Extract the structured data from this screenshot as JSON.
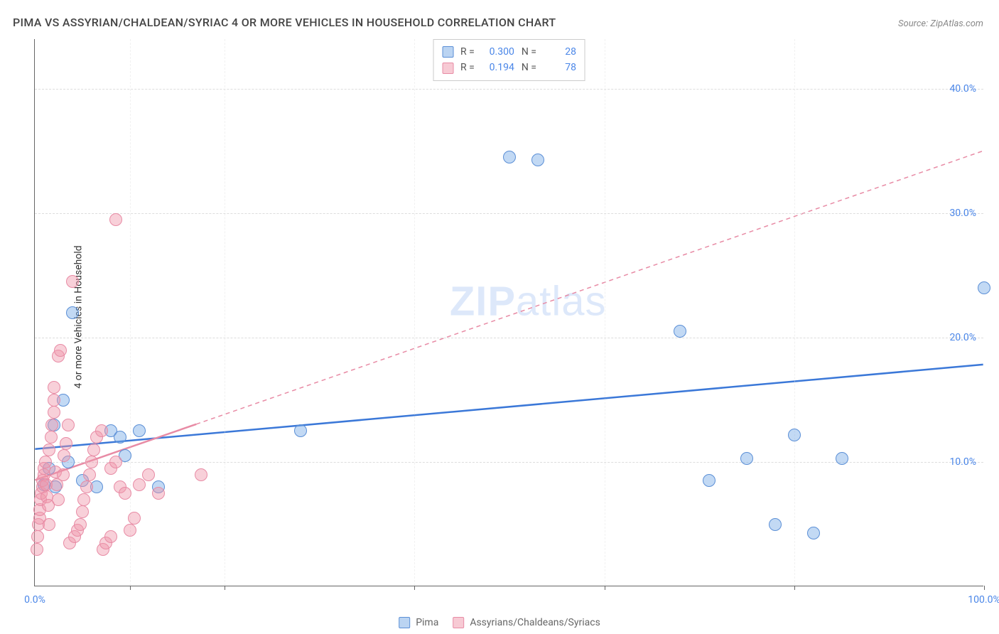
{
  "title": "PIMA VS ASSYRIAN/CHALDEAN/SYRIAC 4 OR MORE VEHICLES IN HOUSEHOLD CORRELATION CHART",
  "source": "Source: ZipAtlas.com",
  "y_axis_label": "4 or more Vehicles in Household",
  "watermark": {
    "bold": "ZIP",
    "rest": "atlas"
  },
  "chart": {
    "type": "scatter",
    "background_color": "#ffffff",
    "grid_color": "#dddddd",
    "axis_color": "#666666",
    "xlim": [
      0,
      100
    ],
    "ylim": [
      0,
      44
    ],
    "x_ticks": [
      0,
      10,
      20,
      40,
      60,
      80,
      100
    ],
    "x_tick_labels": {
      "0": "0.0%",
      "100": "100.0%"
    },
    "y_ticks": [
      10,
      20,
      30,
      40
    ],
    "y_tick_labels": {
      "10": "10.0%",
      "20": "20.0%",
      "30": "30.0%",
      "40": "40.0%"
    },
    "marker_radius": 9,
    "series": [
      {
        "name": "Pima",
        "color_fill": "rgba(120,170,230,0.45)",
        "color_stroke": "#5b8fd6",
        "r": "0.300",
        "n": "28",
        "trend": {
          "solid": true,
          "color": "#3b78d8",
          "width": 2.5,
          "x1": 0,
          "y1": 11.0,
          "x2": 100,
          "y2": 17.8
        },
        "points": [
          [
            1.0,
            8.2
          ],
          [
            1.5,
            9.5
          ],
          [
            2.0,
            13.0
          ],
          [
            2.2,
            8.0
          ],
          [
            3.0,
            15.0
          ],
          [
            3.5,
            10.0
          ],
          [
            4.0,
            22.0
          ],
          [
            5.0,
            8.5
          ],
          [
            6.5,
            8.0
          ],
          [
            8.0,
            12.5
          ],
          [
            9.0,
            12.0
          ],
          [
            9.5,
            10.5
          ],
          [
            11.0,
            12.5
          ],
          [
            13.0,
            8.0
          ],
          [
            28.0,
            12.5
          ],
          [
            50.0,
            34.5
          ],
          [
            53.0,
            34.3
          ],
          [
            68.0,
            20.5
          ],
          [
            71.0,
            8.5
          ],
          [
            75.0,
            10.3
          ],
          [
            78.0,
            5.0
          ],
          [
            80.0,
            12.2
          ],
          [
            82.0,
            4.3
          ],
          [
            85.0,
            10.3
          ],
          [
            100.0,
            24.0
          ]
        ]
      },
      {
        "name": "Assyrians/Chaldeans/Syriacs",
        "color_fill": "rgba(240,150,170,0.45)",
        "color_stroke": "#e88ba5",
        "r": "0.194",
        "n": "78",
        "trend": {
          "solid": false,
          "color": "#e88ba5",
          "width": 1.5,
          "x1": 0,
          "y1": 8.5,
          "x2": 100,
          "y2": 35.0,
          "solid_segment": {
            "x1": 0,
            "y1": 8.5,
            "x2": 17,
            "y2": 13.0
          }
        },
        "points": [
          [
            0.2,
            3.0
          ],
          [
            0.3,
            4.0
          ],
          [
            0.4,
            5.0
          ],
          [
            0.5,
            5.5
          ],
          [
            0.5,
            6.2
          ],
          [
            0.6,
            7.0
          ],
          [
            0.7,
            7.5
          ],
          [
            0.8,
            8.0
          ],
          [
            0.8,
            8.5
          ],
          [
            1.0,
            9.0
          ],
          [
            1.0,
            9.5
          ],
          [
            1.1,
            10.0
          ],
          [
            1.2,
            8.2
          ],
          [
            1.3,
            7.2
          ],
          [
            1.4,
            6.5
          ],
          [
            1.5,
            5.0
          ],
          [
            1.5,
            11.0
          ],
          [
            1.7,
            12.0
          ],
          [
            1.8,
            13.0
          ],
          [
            2.0,
            14.0
          ],
          [
            2.0,
            15.0
          ],
          [
            2.0,
            16.0
          ],
          [
            2.2,
            9.2
          ],
          [
            2.3,
            8.2
          ],
          [
            2.5,
            7.0
          ],
          [
            2.5,
            18.5
          ],
          [
            2.7,
            19.0
          ],
          [
            3.0,
            9.0
          ],
          [
            3.1,
            10.5
          ],
          [
            3.3,
            11.5
          ],
          [
            3.5,
            13.0
          ],
          [
            3.7,
            3.5
          ],
          [
            4.0,
            24.5
          ],
          [
            4.2,
            4.0
          ],
          [
            4.5,
            4.5
          ],
          [
            4.8,
            5.0
          ],
          [
            5.0,
            6.0
          ],
          [
            5.2,
            7.0
          ],
          [
            5.5,
            8.0
          ],
          [
            5.8,
            9.0
          ],
          [
            6.0,
            10.0
          ],
          [
            6.2,
            11.0
          ],
          [
            6.5,
            12.0
          ],
          [
            7.0,
            12.5
          ],
          [
            7.2,
            3.0
          ],
          [
            7.5,
            3.5
          ],
          [
            8.0,
            4.0
          ],
          [
            8.0,
            9.5
          ],
          [
            8.5,
            10.0
          ],
          [
            8.5,
            29.5
          ],
          [
            9.0,
            8.0
          ],
          [
            9.5,
            7.5
          ],
          [
            10.0,
            4.5
          ],
          [
            10.5,
            5.5
          ],
          [
            11.0,
            8.2
          ],
          [
            12.0,
            9.0
          ],
          [
            13.0,
            7.5
          ],
          [
            17.5,
            9.0
          ]
        ]
      }
    ]
  },
  "legend_top": {
    "rows": [
      {
        "swatch": "blue",
        "r_label": "R =",
        "r_val": "0.300",
        "n_label": "N =",
        "n_val": "28"
      },
      {
        "swatch": "pink",
        "r_label": "R =",
        "r_val": "0.194",
        "n_label": "N =",
        "n_val": "78"
      }
    ]
  },
  "legend_bottom": [
    {
      "swatch": "blue",
      "label": "Pima"
    },
    {
      "swatch": "pink",
      "label": "Assyrians/Chaldeans/Syriacs"
    }
  ]
}
